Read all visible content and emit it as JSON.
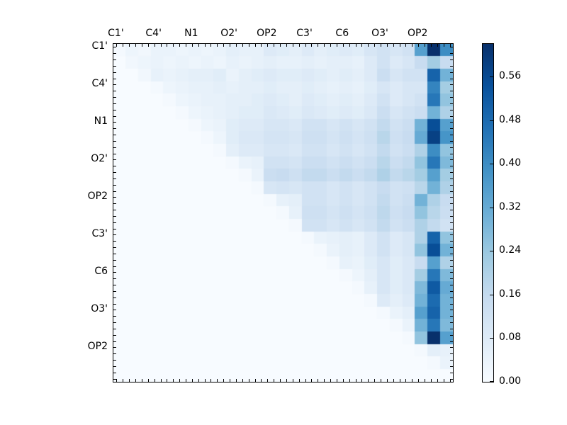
{
  "figure": {
    "background_color": "#ffffff",
    "plot_border_color": "#000000"
  },
  "chart_data": {
    "type": "heatmap",
    "title": "",
    "xlabel": "",
    "ylabel": "",
    "x_tick_labels": [
      "C1'",
      "C4'",
      "N1",
      "O2'",
      "OP2",
      "C3'",
      "C6",
      "O3'",
      "OP2"
    ],
    "y_tick_labels": [
      "C1'",
      "C4'",
      "N1",
      "O2'",
      "OP2",
      "C3'",
      "C6",
      "O3'",
      "OP2"
    ],
    "grid": false,
    "structure": "upper-triangular matrix, lower triangle zero",
    "n_cells": 27,
    "minor_ticks_per_side": 54,
    "label_every_n_minor_ticks": 6,
    "vmin": 0.0,
    "vmax": 0.62,
    "colormap": {
      "name": "Blues",
      "stops": [
        "#f7fbff",
        "#deebf7",
        "#c6dbef",
        "#9ecae1",
        "#6baed6",
        "#4292c6",
        "#2171b5",
        "#08519c",
        "#08306b"
      ]
    },
    "colorbar": {
      "position": "right",
      "tick_labels": [
        "0.00",
        "0.08",
        "0.16",
        "0.24",
        "0.32",
        "0.40",
        "0.48",
        "0.56"
      ],
      "tick_values": [
        0.0,
        0.08,
        0.16,
        0.24,
        0.32,
        0.4,
        0.48,
        0.56
      ]
    },
    "matrix": [
      [
        0.01,
        0.03,
        0.02,
        0.04,
        0.04,
        0.03,
        0.04,
        0.03,
        0.04,
        0.06,
        0.05,
        0.05,
        0.08,
        0.07,
        0.06,
        0.08,
        0.06,
        0.07,
        0.08,
        0.07,
        0.1,
        0.12,
        0.1,
        0.12,
        0.35,
        0.62,
        0.4
      ],
      [
        0,
        0.02,
        0.03,
        0.04,
        0.03,
        0.04,
        0.03,
        0.04,
        0.03,
        0.05,
        0.04,
        0.05,
        0.06,
        0.05,
        0.05,
        0.06,
        0.05,
        0.06,
        0.06,
        0.05,
        0.08,
        0.12,
        0.08,
        0.1,
        0.15,
        0.22,
        0.15
      ],
      [
        0,
        0,
        0.02,
        0.05,
        0.04,
        0.05,
        0.06,
        0.06,
        0.07,
        0.04,
        0.06,
        0.07,
        0.08,
        0.07,
        0.07,
        0.08,
        0.07,
        0.06,
        0.07,
        0.06,
        0.08,
        0.14,
        0.1,
        0.12,
        0.12,
        0.5,
        0.3
      ],
      [
        0,
        0,
        0,
        0.01,
        0.03,
        0.04,
        0.05,
        0.05,
        0.06,
        0.05,
        0.06,
        0.06,
        0.07,
        0.06,
        0.06,
        0.07,
        0.06,
        0.05,
        0.06,
        0.05,
        0.07,
        0.1,
        0.08,
        0.1,
        0.1,
        0.42,
        0.22
      ],
      [
        0,
        0,
        0,
        0,
        0.01,
        0.03,
        0.04,
        0.05,
        0.05,
        0.06,
        0.06,
        0.07,
        0.08,
        0.07,
        0.06,
        0.08,
        0.07,
        0.06,
        0.07,
        0.06,
        0.08,
        0.12,
        0.08,
        0.1,
        0.12,
        0.45,
        0.25
      ],
      [
        0,
        0,
        0,
        0,
        0,
        0.01,
        0.03,
        0.04,
        0.05,
        0.06,
        0.07,
        0.07,
        0.09,
        0.08,
        0.07,
        0.09,
        0.08,
        0.07,
        0.08,
        0.07,
        0.09,
        0.14,
        0.1,
        0.12,
        0.14,
        0.3,
        0.2
      ],
      [
        0,
        0,
        0,
        0,
        0,
        0,
        0.01,
        0.03,
        0.04,
        0.07,
        0.08,
        0.08,
        0.1,
        0.1,
        0.09,
        0.12,
        0.12,
        0.1,
        0.12,
        0.1,
        0.12,
        0.16,
        0.12,
        0.14,
        0.3,
        0.55,
        0.35
      ],
      [
        0,
        0,
        0,
        0,
        0,
        0,
        0,
        0.01,
        0.03,
        0.07,
        0.09,
        0.09,
        0.11,
        0.11,
        0.1,
        0.13,
        0.13,
        0.11,
        0.13,
        0.11,
        0.13,
        0.18,
        0.13,
        0.15,
        0.32,
        0.58,
        0.38
      ],
      [
        0,
        0,
        0,
        0,
        0,
        0,
        0,
        0,
        0.01,
        0.06,
        0.08,
        0.08,
        0.1,
        0.1,
        0.09,
        0.12,
        0.12,
        0.1,
        0.12,
        0.1,
        0.12,
        0.16,
        0.12,
        0.14,
        0.2,
        0.4,
        0.25
      ],
      [
        0,
        0,
        0,
        0,
        0,
        0,
        0,
        0,
        0,
        0.01,
        0.04,
        0.05,
        0.12,
        0.12,
        0.11,
        0.14,
        0.14,
        0.12,
        0.14,
        0.12,
        0.14,
        0.18,
        0.14,
        0.16,
        0.25,
        0.45,
        0.28
      ],
      [
        0,
        0,
        0,
        0,
        0,
        0,
        0,
        0,
        0,
        0,
        0.01,
        0.04,
        0.14,
        0.15,
        0.13,
        0.16,
        0.16,
        0.14,
        0.16,
        0.14,
        0.16,
        0.2,
        0.16,
        0.18,
        0.22,
        0.35,
        0.22
      ],
      [
        0,
        0,
        0,
        0,
        0,
        0,
        0,
        0,
        0,
        0,
        0,
        0.01,
        0.1,
        0.11,
        0.1,
        0.12,
        0.12,
        0.1,
        0.12,
        0.1,
        0.12,
        0.15,
        0.12,
        0.13,
        0.18,
        0.3,
        0.2
      ],
      [
        0,
        0,
        0,
        0,
        0,
        0,
        0,
        0,
        0,
        0,
        0,
        0,
        0.01,
        0.05,
        0.06,
        0.12,
        0.12,
        0.1,
        0.12,
        0.1,
        0.12,
        0.16,
        0.12,
        0.14,
        0.3,
        0.2,
        0.15
      ],
      [
        0,
        0,
        0,
        0,
        0,
        0,
        0,
        0,
        0,
        0,
        0,
        0,
        0,
        0.01,
        0.05,
        0.13,
        0.13,
        0.11,
        0.13,
        0.11,
        0.13,
        0.17,
        0.13,
        0.15,
        0.25,
        0.18,
        0.14
      ],
      [
        0,
        0,
        0,
        0,
        0,
        0,
        0,
        0,
        0,
        0,
        0,
        0,
        0,
        0,
        0.01,
        0.12,
        0.12,
        0.1,
        0.12,
        0.1,
        0.12,
        0.16,
        0.12,
        0.14,
        0.2,
        0.16,
        0.12
      ],
      [
        0,
        0,
        0,
        0,
        0,
        0,
        0,
        0,
        0,
        0,
        0,
        0,
        0,
        0,
        0,
        0.01,
        0.04,
        0.05,
        0.06,
        0.05,
        0.08,
        0.12,
        0.08,
        0.1,
        0.2,
        0.5,
        0.25
      ],
      [
        0,
        0,
        0,
        0,
        0,
        0,
        0,
        0,
        0,
        0,
        0,
        0,
        0,
        0,
        0,
        0,
        0.01,
        0.04,
        0.06,
        0.05,
        0.08,
        0.12,
        0.08,
        0.1,
        0.25,
        0.55,
        0.3
      ],
      [
        0,
        0,
        0,
        0,
        0,
        0,
        0,
        0,
        0,
        0,
        0,
        0,
        0,
        0,
        0,
        0,
        0,
        0.01,
        0.05,
        0.04,
        0.07,
        0.1,
        0.07,
        0.09,
        0.15,
        0.35,
        0.2
      ],
      [
        0,
        0,
        0,
        0,
        0,
        0,
        0,
        0,
        0,
        0,
        0,
        0,
        0,
        0,
        0,
        0,
        0,
        0,
        0.01,
        0.03,
        0.06,
        0.1,
        0.07,
        0.09,
        0.22,
        0.45,
        0.28
      ],
      [
        0,
        0,
        0,
        0,
        0,
        0,
        0,
        0,
        0,
        0,
        0,
        0,
        0,
        0,
        0,
        0,
        0,
        0,
        0,
        0.01,
        0.05,
        0.1,
        0.07,
        0.09,
        0.28,
        0.52,
        0.32
      ],
      [
        0,
        0,
        0,
        0,
        0,
        0,
        0,
        0,
        0,
        0,
        0,
        0,
        0,
        0,
        0,
        0,
        0,
        0,
        0,
        0,
        0.01,
        0.08,
        0.06,
        0.08,
        0.3,
        0.48,
        0.3
      ],
      [
        0,
        0,
        0,
        0,
        0,
        0,
        0,
        0,
        0,
        0,
        0,
        0,
        0,
        0,
        0,
        0,
        0,
        0,
        0,
        0,
        0,
        0.01,
        0.04,
        0.06,
        0.35,
        0.5,
        0.3
      ],
      [
        0,
        0,
        0,
        0,
        0,
        0,
        0,
        0,
        0,
        0,
        0,
        0,
        0,
        0,
        0,
        0,
        0,
        0,
        0,
        0,
        0,
        0,
        0.01,
        0.04,
        0.3,
        0.45,
        0.28
      ],
      [
        0,
        0,
        0,
        0,
        0,
        0,
        0,
        0,
        0,
        0,
        0,
        0,
        0,
        0,
        0,
        0,
        0,
        0,
        0,
        0,
        0,
        0,
        0,
        0.01,
        0.25,
        0.62,
        0.35
      ],
      [
        0,
        0,
        0,
        0,
        0,
        0,
        0,
        0,
        0,
        0,
        0,
        0,
        0,
        0,
        0,
        0,
        0,
        0,
        0,
        0,
        0,
        0,
        0,
        0,
        0.01,
        0.06,
        0.05
      ],
      [
        0,
        0,
        0,
        0,
        0,
        0,
        0,
        0,
        0,
        0,
        0,
        0,
        0,
        0,
        0,
        0,
        0,
        0,
        0,
        0,
        0,
        0,
        0,
        0,
        0,
        0.01,
        0.04
      ],
      [
        0,
        0,
        0,
        0,
        0,
        0,
        0,
        0,
        0,
        0,
        0,
        0,
        0,
        0,
        0,
        0,
        0,
        0,
        0,
        0,
        0,
        0,
        0,
        0,
        0,
        0,
        0.0
      ]
    ]
  }
}
